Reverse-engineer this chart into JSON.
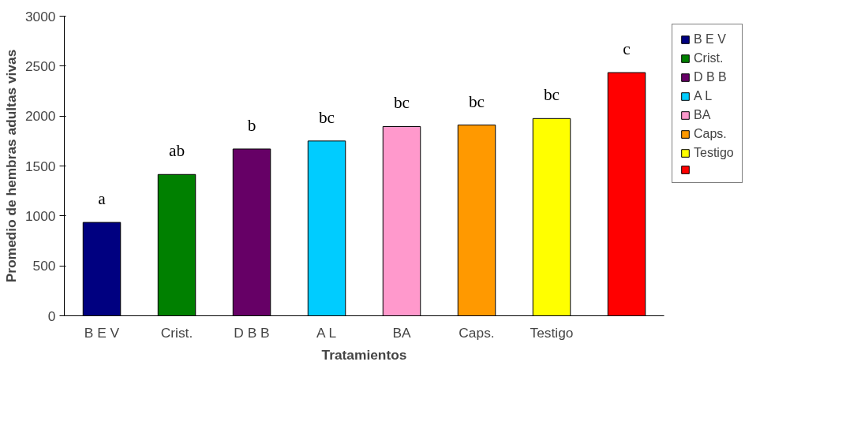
{
  "chart_data": {
    "type": "bar",
    "xlabel": "Tratamientos",
    "ylabel": "Promedio de hembras adultas vivas",
    "categories": [
      "B E V",
      "Crist.",
      "D B B",
      "A L",
      "BA",
      "Caps.",
      "Testigo",
      null
    ],
    "series": [
      {
        "name": "B E V",
        "color": "#000080",
        "values": [
          935,
          null,
          null,
          null,
          null,
          null,
          null,
          null
        ],
        "value_labels": [
          "a",
          null,
          null,
          null,
          null,
          null,
          null,
          null
        ]
      },
      {
        "name": "Crist.",
        "color": "#008000",
        "values": [
          null,
          1415,
          null,
          null,
          null,
          null,
          null,
          null
        ],
        "value_labels": [
          null,
          "ab",
          null,
          null,
          null,
          null,
          null,
          null
        ]
      },
      {
        "name": "D B B",
        "color": "#660066",
        "values": [
          null,
          null,
          1670,
          null,
          null,
          null,
          null,
          null
        ],
        "value_labels": [
          null,
          null,
          "b",
          null,
          null,
          null,
          null,
          null
        ]
      },
      {
        "name": "A L",
        "color": "#00ccff",
        "values": [
          null,
          null,
          null,
          1750,
          null,
          null,
          null,
          null
        ],
        "value_labels": [
          null,
          null,
          null,
          "bc",
          null,
          null,
          null,
          null
        ]
      },
      {
        "name": "BA",
        "color": "#ff99cc",
        "values": [
          null,
          null,
          null,
          null,
          1895,
          null,
          null,
          null
        ],
        "value_labels": [
          null,
          null,
          null,
          null,
          "bc",
          null,
          null,
          null
        ]
      },
      {
        "name": "Caps.",
        "color": "#ff9900",
        "values": [
          null,
          null,
          null,
          null,
          null,
          1910,
          null,
          null
        ],
        "value_labels": [
          null,
          null,
          null,
          null,
          null,
          "bc",
          null,
          null
        ]
      },
      {
        "name": "Testigo",
        "color": "#ffff00",
        "values": [
          null,
          null,
          null,
          null,
          null,
          null,
          1975,
          null
        ],
        "value_labels": [
          null,
          null,
          null,
          null,
          null,
          null,
          "bc",
          null
        ]
      },
      {
        "color": "#ff0000",
        "values": [
          null,
          null,
          null,
          null,
          null,
          null,
          null,
          2435
        ],
        "value_labels": [
          null,
          null,
          null,
          null,
          null,
          null,
          null,
          "c"
        ]
      }
    ],
    "ylim": [
      0,
      3000
    ],
    "yticks": [
      0,
      500,
      1000,
      1500,
      2000,
      2500,
      3000
    ],
    "grid": false,
    "legend": "right"
  }
}
